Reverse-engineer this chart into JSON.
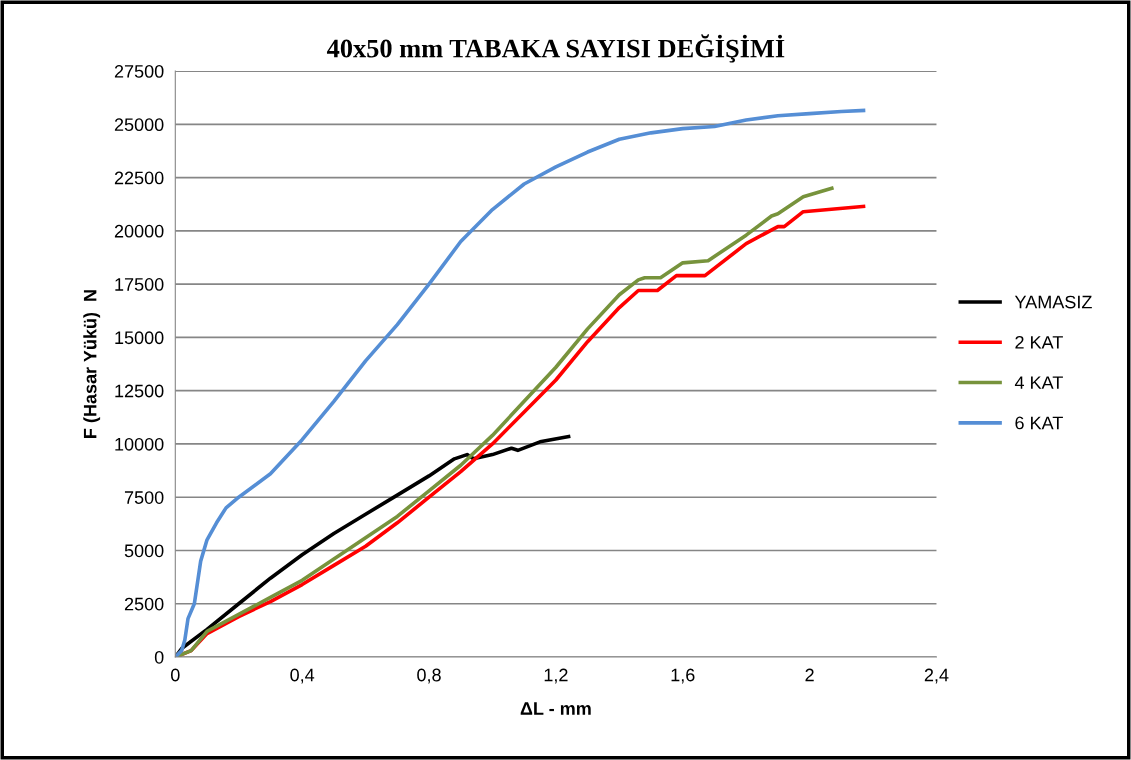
{
  "chart_data": {
    "type": "line",
    "title": "40x50 mm TABAKA SAYISI DEĞİŞİMİ",
    "xlabel": "ΔL - mm",
    "ylabel": "F (Hasar Yükü)  N",
    "xlim": [
      0,
      2.4
    ],
    "xticks": [
      {
        "value": 0,
        "label": "0"
      },
      {
        "value": 0.4,
        "label": "0,4"
      },
      {
        "value": 0.8,
        "label": "0,8"
      },
      {
        "value": 1.2,
        "label": "1,2"
      },
      {
        "value": 1.6,
        "label": "1,6"
      },
      {
        "value": 2,
        "label": "2"
      },
      {
        "value": 2.4,
        "label": "2,4"
      }
    ],
    "ylim": [
      0,
      27500
    ],
    "yticks": [
      0,
      2500,
      5000,
      7500,
      10000,
      12500,
      15000,
      17500,
      20000,
      22500,
      25000,
      27500
    ],
    "grid": "y",
    "legend": "right",
    "marker": "none",
    "line_style": "solid",
    "series": [
      {
        "name": "YAMASIZ",
        "color": "#000000",
        "x": [
          0,
          0.02,
          0.1,
          0.2,
          0.3,
          0.4,
          0.5,
          0.6,
          0.7,
          0.8,
          0.88,
          0.92,
          0.94,
          1.0,
          1.06,
          1.08,
          1.15,
          1.24
        ],
        "values": [
          0,
          400,
          1300,
          2500,
          3700,
          4800,
          5800,
          6700,
          7600,
          8500,
          9300,
          9500,
          9300,
          9500,
          9800,
          9700,
          10100,
          10350
        ]
      },
      {
        "name": "2 KAT",
        "color": "#ff0000",
        "x": [
          0,
          0.05,
          0.1,
          0.2,
          0.3,
          0.4,
          0.5,
          0.6,
          0.7,
          0.8,
          0.9,
          1.0,
          1.1,
          1.2,
          1.3,
          1.4,
          1.46,
          1.52,
          1.58,
          1.67,
          1.8,
          1.9,
          1.92,
          1.98,
          2.17
        ],
        "values": [
          0,
          300,
          1100,
          1900,
          2600,
          3400,
          4300,
          5200,
          6300,
          7500,
          8700,
          10000,
          11500,
          13000,
          14800,
          16400,
          17200,
          17200,
          17900,
          17900,
          19400,
          20200,
          20200,
          20900,
          21150
        ]
      },
      {
        "name": "4 KAT",
        "color": "#77933c",
        "x": [
          0,
          0.05,
          0.1,
          0.2,
          0.3,
          0.4,
          0.5,
          0.6,
          0.7,
          0.8,
          0.9,
          1.0,
          1.1,
          1.2,
          1.3,
          1.4,
          1.46,
          1.48,
          1.53,
          1.6,
          1.68,
          1.8,
          1.88,
          1.9,
          1.98,
          2.07
        ],
        "values": [
          0,
          300,
          1200,
          2000,
          2800,
          3600,
          4600,
          5600,
          6600,
          7800,
          9000,
          10400,
          12000,
          13600,
          15400,
          17000,
          17700,
          17800,
          17800,
          18500,
          18600,
          19800,
          20700,
          20800,
          21600,
          22000
        ]
      },
      {
        "name": "6 KAT",
        "color": "#558ed5",
        "x": [
          0,
          0.02,
          0.03,
          0.04,
          0.06,
          0.07,
          0.08,
          0.1,
          0.13,
          0.16,
          0.2,
          0.3,
          0.4,
          0.5,
          0.6,
          0.7,
          0.8,
          0.9,
          1.0,
          1.1,
          1.2,
          1.3,
          1.4,
          1.5,
          1.6,
          1.7,
          1.8,
          1.9,
          2.0,
          2.1,
          2.17
        ],
        "values": [
          0,
          300,
          800,
          1800,
          2500,
          3500,
          4500,
          5500,
          6300,
          7000,
          7500,
          8600,
          10200,
          12000,
          13900,
          15600,
          17500,
          19500,
          21000,
          22200,
          23000,
          23700,
          24300,
          24600,
          24800,
          24900,
          25200,
          25400,
          25500,
          25600,
          25650
        ]
      }
    ]
  }
}
